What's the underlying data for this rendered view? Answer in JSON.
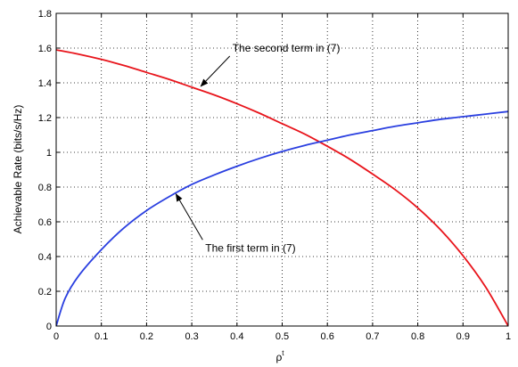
{
  "chart_data": {
    "type": "line",
    "title": "",
    "xlabel": "ρ",
    "xlabel_superscript": "t",
    "ylabel": "Achievable Rate (bits/s/Hz)",
    "xlim": [
      0,
      1
    ],
    "ylim": [
      0,
      1.8
    ],
    "xticks": [
      "0",
      "0.1",
      "0.2",
      "0.3",
      "0.4",
      "0.5",
      "0.6",
      "0.7",
      "0.8",
      "0.9",
      "1"
    ],
    "yticks": [
      "0",
      "0.2",
      "0.4",
      "0.6",
      "0.8",
      "1",
      "1.2",
      "1.4",
      "1.6",
      "1.8"
    ],
    "grid": true,
    "series": [
      {
        "color": "#e8141b",
        "x": [
          0,
          0.05,
          0.1,
          0.15,
          0.2,
          0.25,
          0.3,
          0.35,
          0.4,
          0.45,
          0.5,
          0.55,
          0.6,
          0.65,
          0.7,
          0.75,
          0.8,
          0.85,
          0.9,
          0.95,
          1.0
        ],
        "y": [
          1.59,
          1.565,
          1.535,
          1.5,
          1.46,
          1.42,
          1.375,
          1.33,
          1.28,
          1.225,
          1.165,
          1.105,
          1.035,
          0.96,
          0.875,
          0.785,
          0.68,
          0.555,
          0.405,
          0.225,
          0.0
        ]
      },
      {
        "color": "#2a3fe0",
        "x": [
          0,
          0.02,
          0.05,
          0.1,
          0.15,
          0.2,
          0.25,
          0.3,
          0.35,
          0.4,
          0.45,
          0.5,
          0.55,
          0.6,
          0.65,
          0.7,
          0.75,
          0.8,
          0.85,
          0.9,
          0.95,
          1.0
        ],
        "y": [
          0.0,
          0.16,
          0.29,
          0.44,
          0.565,
          0.665,
          0.745,
          0.815,
          0.87,
          0.92,
          0.965,
          1.005,
          1.04,
          1.07,
          1.1,
          1.125,
          1.15,
          1.17,
          1.19,
          1.205,
          1.22,
          1.235
        ]
      }
    ],
    "annotations": [
      {
        "text": "The second term in (7)",
        "target": [
          0.32,
          1.38
        ],
        "text_at": [
          0.39,
          1.6
        ]
      },
      {
        "text": "The first term in (7)",
        "target": [
          0.265,
          0.76
        ],
        "text_at": [
          0.33,
          0.45
        ]
      }
    ]
  }
}
